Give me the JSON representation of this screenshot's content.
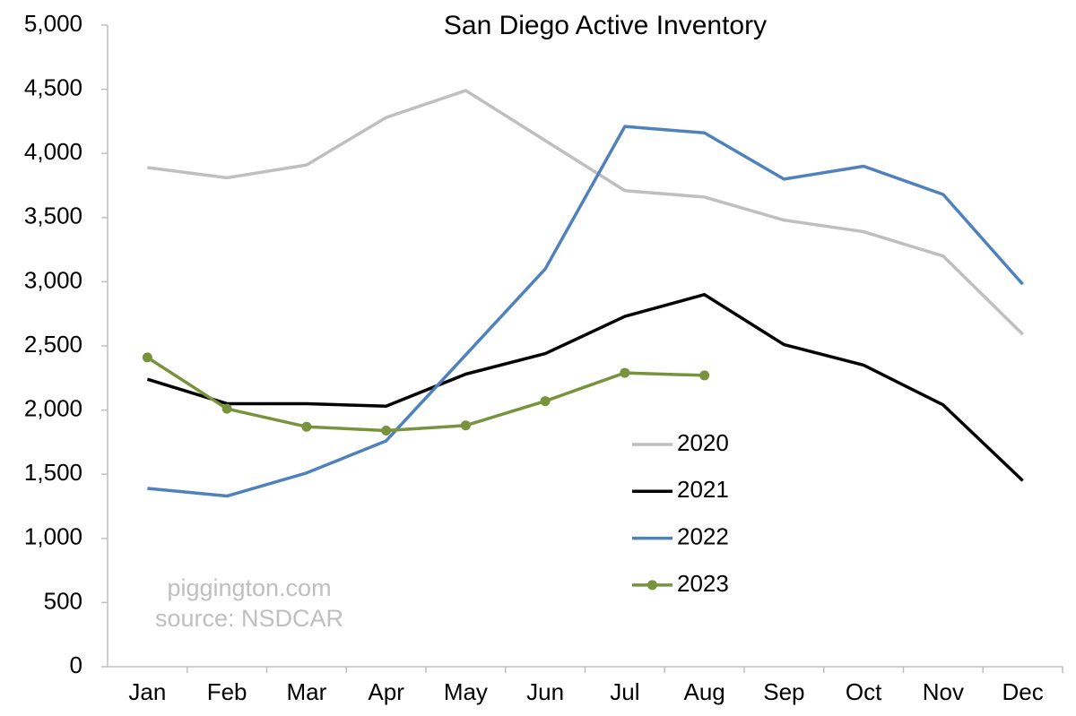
{
  "chart_data": {
    "type": "line",
    "title": "San Diego Active Inventory",
    "categories": [
      "Jan",
      "Feb",
      "Mar",
      "Apr",
      "May",
      "Jun",
      "Jul",
      "Aug",
      "Sep",
      "Oct",
      "Nov",
      "Dec"
    ],
    "series": [
      {
        "name": "2020",
        "color": "#bfbfbf",
        "values": [
          3890,
          3810,
          3910,
          4280,
          4490,
          4100,
          3710,
          3660,
          3480,
          3390,
          3200,
          2590
        ]
      },
      {
        "name": "2021",
        "color": "#000000",
        "values": [
          2240,
          2050,
          2050,
          2030,
          2280,
          2440,
          2730,
          2900,
          2510,
          2350,
          2040,
          1450
        ]
      },
      {
        "name": "2022",
        "color": "#4f81bd",
        "values": [
          1390,
          1330,
          1510,
          1760,
          2430,
          3100,
          4210,
          4160,
          3800,
          3900,
          3680,
          2980
        ]
      },
      {
        "name": "2023",
        "color": "#77933c",
        "markers": true,
        "values": [
          2410,
          2010,
          1870,
          1840,
          1880,
          2070,
          2290,
          2270,
          null,
          null,
          null,
          null
        ]
      }
    ],
    "ylim": [
      0,
      5000
    ],
    "yticks": [
      0,
      500,
      {
        "value": 1000,
        "label": "1,000"
      },
      {
        "value": 1500,
        "label": "1,500"
      },
      {
        "value": 2000,
        "label": "2,000"
      },
      {
        "value": 2500,
        "label": "2,500"
      },
      {
        "value": 3000,
        "label": "3,000"
      },
      {
        "value": 3500,
        "label": "3,500"
      },
      {
        "value": 4000,
        "label": "4,000"
      },
      {
        "value": 4500,
        "label": "4,500"
      },
      {
        "value": 5000,
        "label": "5,000"
      }
    ],
    "grid": false,
    "annotations": [
      "piggington.com",
      "source: NSDCAR"
    ]
  }
}
